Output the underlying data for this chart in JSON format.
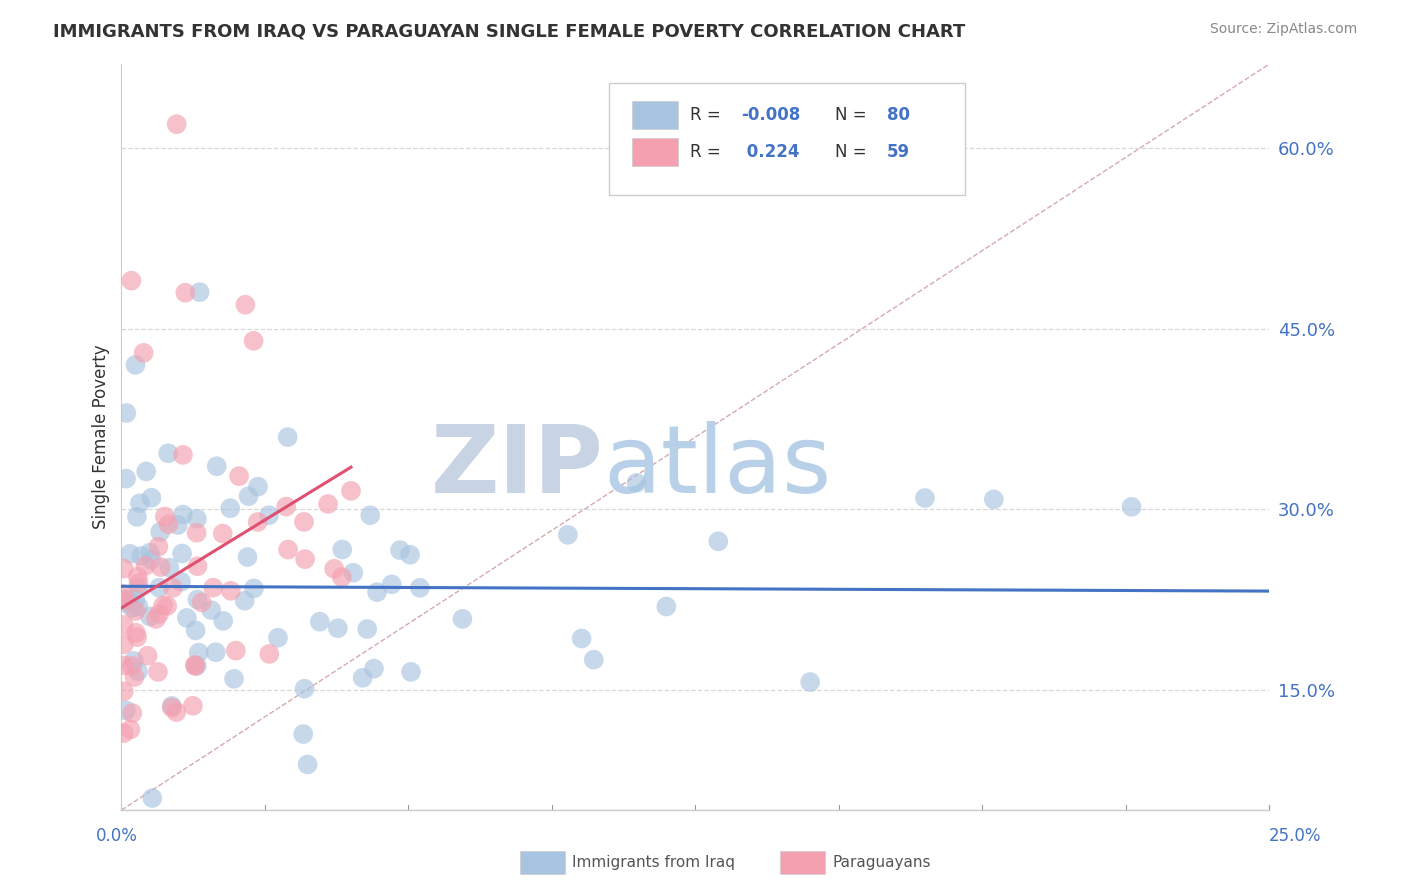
{
  "title": "IMMIGRANTS FROM IRAQ VS PARAGUAYAN SINGLE FEMALE POVERTY CORRELATION CHART",
  "source": "Source: ZipAtlas.com",
  "ylabel": "Single Female Poverty",
  "ytick_labels": [
    "15.0%",
    "30.0%",
    "45.0%",
    "60.0%"
  ],
  "ytick_values": [
    0.15,
    0.3,
    0.45,
    0.6
  ],
  "xlim": [
    0.0,
    0.25
  ],
  "ylim": [
    0.05,
    0.67
  ],
  "iraq_color": "#a8c4e0",
  "para_color": "#f4a0b0",
  "iraq_line_color": "#4472c4",
  "para_line_color": "#e05070",
  "ref_line_color": "#d0a0a8",
  "watermark_zip_color": "#c8d4e4",
  "watermark_atlas_color": "#b8d0e8",
  "grid_color": "#d8d8d8",
  "axis_color": "#cccccc",
  "legend_r_color": "#4472c4",
  "legend_label_color": "#333333",
  "bottom_legend_color": "#555555",
  "title_color": "#333333",
  "source_color": "#888888",
  "ylabel_color": "#333333",
  "iraq_line_x": [
    0.0,
    0.25
  ],
  "iraq_line_y": [
    0.236,
    0.232
  ],
  "para_line_x": [
    0.0,
    0.05
  ],
  "para_line_y": [
    0.218,
    0.335
  ]
}
